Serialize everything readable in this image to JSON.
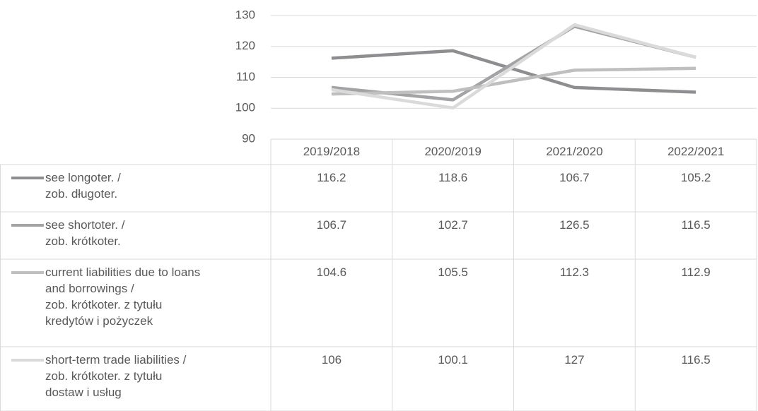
{
  "chart_data": {
    "type": "line",
    "categories": [
      "2019/2018",
      "2020/2019",
      "2021/2020",
      "2022/2021"
    ],
    "series": [
      {
        "name": "see longoter. /\nzob. długoter.",
        "color": "#8e8e90",
        "values": [
          116.2,
          118.6,
          106.7,
          105.2
        ]
      },
      {
        "name": "see shortoter. /\nzob. krótkoter.",
        "color": "#a3a3a5",
        "values": [
          106.7,
          102.7,
          126.5,
          116.5
        ]
      },
      {
        "name": "current liabilities due to loans\nand borrowings /\nzob. krótkoter. z tytułu\nkredytów i pożyczek",
        "color": "#bfbfbf",
        "values": [
          104.6,
          105.5,
          112.3,
          112.9
        ]
      },
      {
        "name": "short-term trade liabilities /\nzob. krótkoter. z tytułu\ndostaw i usług",
        "color": "#dadada",
        "values": [
          106,
          100.1,
          127,
          116.5
        ]
      }
    ],
    "ylim": [
      90,
      130
    ],
    "yticks": [
      90,
      100,
      110,
      120,
      130
    ],
    "grid": true,
    "data_table": true
  }
}
